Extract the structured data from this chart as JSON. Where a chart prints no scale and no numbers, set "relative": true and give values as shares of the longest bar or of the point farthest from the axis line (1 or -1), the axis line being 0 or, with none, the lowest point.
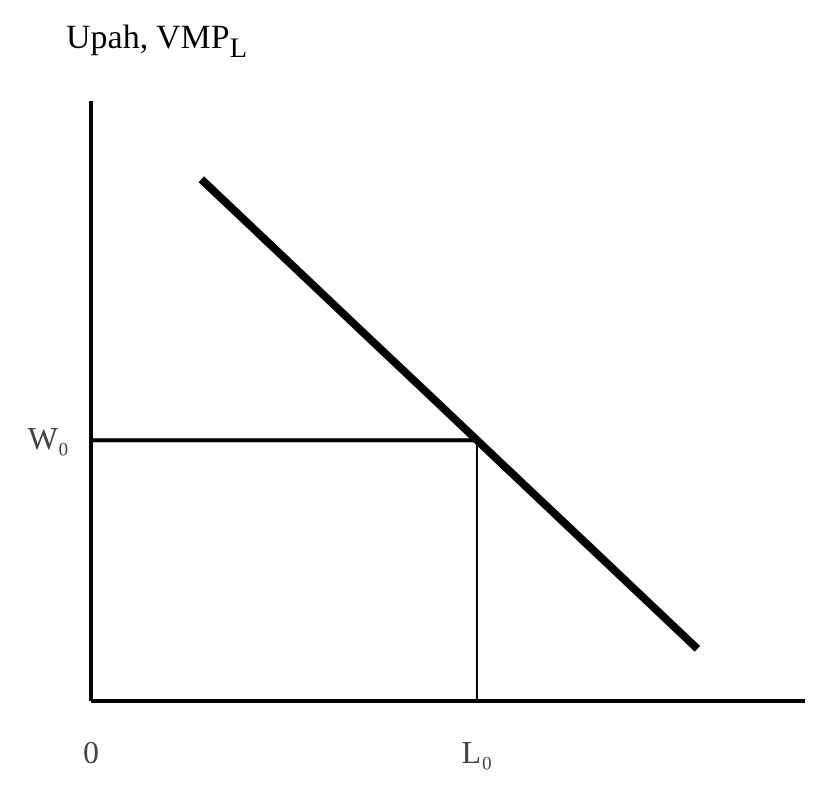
{
  "chart_data": {
    "type": "line",
    "relative": true,
    "ylabel": "Upah, VMP$_{L}$",
    "categories": [
      "0",
      null,
      null,
      null,
      null,
      null,
      null,
      "L₀",
      null,
      null,
      null,
      null,
      null
    ],
    "series": [
      {
        "color": "#000000",
        "values": [
          null,
          null,
          1.0,
          0.9,
          0.8,
          0.7,
          0.6,
          0.5,
          0.4,
          0.3,
          0.2,
          0.1,
          null
        ]
      }
    ],
    "ref_lines": [
      {
        "axis": "y",
        "value": 0.5,
        "label": "W₀",
        "color": "#000000"
      },
      {
        "axis": "x",
        "value": "L₀",
        "color": "#000000"
      }
    ],
    "grid": false
  }
}
